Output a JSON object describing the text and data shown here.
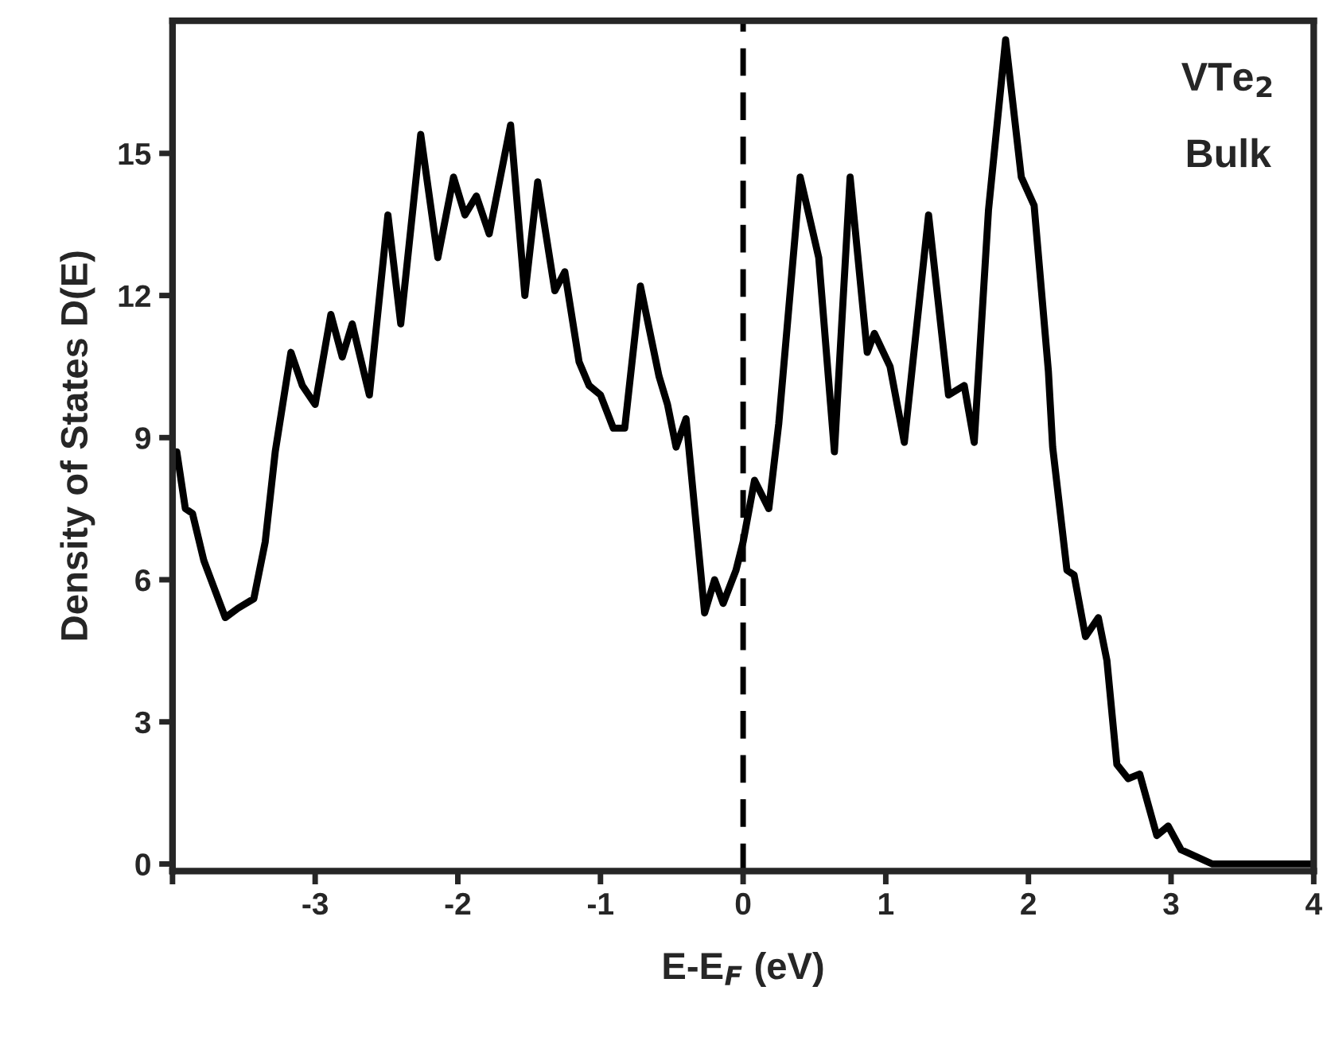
{
  "chart_data": {
    "type": "line",
    "xlabel": "E-E$_{F}$ (eV)",
    "ylabel": "Density of States D(E)",
    "annotations": [
      "VTe$_{2}$",
      "Bulk"
    ],
    "xlim": [
      -4,
      4
    ],
    "xticks": [
      {
        "value": -4,
        "label": null
      },
      -3,
      -2,
      -1,
      0,
      1,
      2,
      3,
      4
    ],
    "ylim": [
      -0.15,
      17.8
    ],
    "yticks": [
      0,
      3,
      6,
      9,
      12,
      15
    ],
    "grid": false,
    "legend": false,
    "marker": "none",
    "line_style": "solid",
    "ref_lines": [
      {
        "axis": "x",
        "value": 0,
        "label": null,
        "color": "#000000",
        "line_style": "dashed"
      }
    ],
    "series": [
      {
        "color": "#000000",
        "x": [
          -3.97,
          -3.91,
          -3.86,
          -3.78,
          -3.73,
          -3.63,
          -3.54,
          -3.43,
          -3.35,
          -3.28,
          -3.17,
          -3.09,
          -3.0,
          -2.89,
          -2.81,
          -2.74,
          -2.62,
          -2.49,
          -2.4,
          -2.26,
          -2.14,
          -2.03,
          -1.95,
          -1.87,
          -1.78,
          -1.63,
          -1.53,
          -1.44,
          -1.32,
          -1.25,
          -1.15,
          -1.08,
          -1.0,
          -0.91,
          -0.83,
          -0.72,
          -0.59,
          -0.53,
          -0.47,
          -0.4,
          -0.27,
          -0.2,
          -0.14,
          -0.05,
          0.0,
          0.08,
          0.18,
          0.25,
          0.4,
          0.53,
          0.64,
          0.75,
          0.87,
          0.92,
          1.03,
          1.13,
          1.3,
          1.44,
          1.55,
          1.62,
          1.72,
          1.84,
          1.95,
          2.04,
          2.14,
          2.17,
          2.27,
          2.32,
          2.4,
          2.49,
          2.55,
          2.62,
          2.7,
          2.78,
          2.9,
          2.98,
          3.07,
          3.18,
          3.29,
          4.0
        ],
        "values": [
          8.7,
          7.5,
          7.4,
          6.4,
          6.0,
          5.2,
          5.4,
          5.6,
          6.8,
          8.7,
          10.8,
          10.1,
          9.7,
          11.6,
          10.7,
          11.4,
          9.9,
          13.7,
          11.4,
          15.4,
          12.8,
          14.5,
          13.7,
          14.1,
          13.3,
          15.6,
          12.0,
          14.4,
          12.1,
          12.5,
          10.6,
          10.1,
          9.9,
          9.2,
          9.2,
          12.2,
          10.3,
          9.7,
          8.8,
          9.4,
          5.3,
          6.0,
          5.5,
          6.2,
          6.8,
          8.1,
          7.5,
          9.3,
          14.5,
          12.8,
          8.7,
          14.5,
          10.8,
          11.2,
          10.5,
          8.9,
          13.7,
          9.9,
          10.1,
          8.9,
          13.8,
          17.4,
          14.5,
          13.9,
          10.4,
          8.8,
          6.2,
          6.1,
          4.8,
          5.2,
          4.3,
          2.1,
          1.8,
          1.9,
          0.6,
          0.8,
          0.3,
          0.15,
          0.0,
          0.0
        ]
      }
    ]
  }
}
